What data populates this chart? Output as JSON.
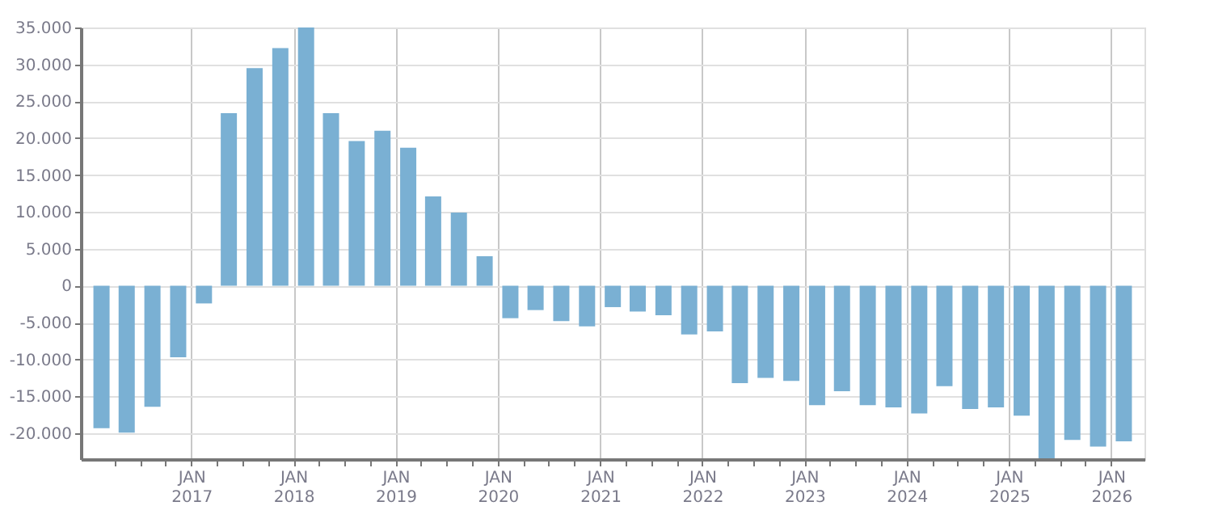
{
  "chart_data": {
    "type": "bar",
    "x": [
      "2016-02-15",
      "2016-05-15",
      "2016-08-15",
      "2016-11-15",
      "2017-02-15",
      "2017-05-15",
      "2017-08-15",
      "2017-11-15",
      "2018-02-15",
      "2018-05-15",
      "2018-08-15",
      "2018-11-15",
      "2019-02-15",
      "2019-05-15",
      "2019-08-15",
      "2019-11-15",
      "2020-02-15",
      "2020-05-15",
      "2020-08-15",
      "2020-11-15",
      "2021-02-15",
      "2021-05-15",
      "2021-08-15",
      "2021-11-15",
      "2022-02-15",
      "2022-05-15",
      "2022-08-15",
      "2022-11-15",
      "2023-02-15",
      "2023-05-15",
      "2023-08-15",
      "2023-11-15",
      "2024-02-15",
      "2024-05-15",
      "2024-08-15",
      "2024-11-15",
      "2025-02-15",
      "2025-05-15",
      "2025-08-15",
      "2025-11-15",
      "2026-02-15"
    ],
    "values": [
      -19300,
      -19900,
      -16400,
      -9700,
      -2400,
      23400,
      29500,
      32200,
      35000,
      23400,
      19600,
      21000,
      18700,
      12100,
      9900,
      4000,
      -4400,
      -3300,
      -4800,
      -5500,
      -2900,
      -3500,
      -4000,
      -6600,
      -6200,
      -13200,
      -12500,
      -12900,
      -16200,
      -14300,
      -16200,
      -16500,
      -17300,
      -13600,
      -16700,
      -16500,
      -17600,
      -23400,
      -20900,
      -21800,
      -21100
    ],
    "color": "#7ab0d3",
    "xlim": [
      "2016-01-01",
      "2026-04-01"
    ],
    "xticks": [
      {
        "value": "2016-04-01",
        "label": null
      },
      {
        "value": "2016-07-01",
        "label": null
      },
      {
        "value": "2016-10-01",
        "label": null
      },
      {
        "value": "2017-01-01",
        "label": "JAN\n2017"
      },
      {
        "value": "2017-04-01",
        "label": null
      },
      {
        "value": "2017-07-01",
        "label": null
      },
      {
        "value": "2017-10-01",
        "label": null
      },
      {
        "value": "2018-01-01",
        "label": "JAN\n2018"
      },
      {
        "value": "2018-04-01",
        "label": null
      },
      {
        "value": "2018-07-01",
        "label": null
      },
      {
        "value": "2018-10-01",
        "label": null
      },
      {
        "value": "2019-01-01",
        "label": "JAN\n2019"
      },
      {
        "value": "2019-04-01",
        "label": null
      },
      {
        "value": "2019-07-01",
        "label": null
      },
      {
        "value": "2019-10-01",
        "label": null
      },
      {
        "value": "2020-01-01",
        "label": "JAN\n2020"
      },
      {
        "value": "2020-04-01",
        "label": null
      },
      {
        "value": "2020-07-01",
        "label": null
      },
      {
        "value": "2020-10-01",
        "label": null
      },
      {
        "value": "2021-01-01",
        "label": "JAN\n2021"
      },
      {
        "value": "2021-04-01",
        "label": null
      },
      {
        "value": "2021-07-01",
        "label": null
      },
      {
        "value": "2021-10-01",
        "label": null
      },
      {
        "value": "2022-01-01",
        "label": "JAN\n2022"
      },
      {
        "value": "2022-04-01",
        "label": null
      },
      {
        "value": "2022-07-01",
        "label": null
      },
      {
        "value": "2022-10-01",
        "label": null
      },
      {
        "value": "2023-01-01",
        "label": "JAN\n2023"
      },
      {
        "value": "2023-04-01",
        "label": null
      },
      {
        "value": "2023-07-01",
        "label": null
      },
      {
        "value": "2023-10-01",
        "label": null
      },
      {
        "value": "2024-01-01",
        "label": "JAN\n2024"
      },
      {
        "value": "2024-04-01",
        "label": null
      },
      {
        "value": "2024-07-01",
        "label": null
      },
      {
        "value": "2024-10-01",
        "label": null
      },
      {
        "value": "2025-01-01",
        "label": "JAN\n2025"
      },
      {
        "value": "2025-04-01",
        "label": null
      },
      {
        "value": "2025-07-01",
        "label": null
      },
      {
        "value": "2025-10-01",
        "label": null
      },
      {
        "value": "2026-01-01",
        "label": "JAN\n2026"
      }
    ],
    "ylim": [
      -23500,
      35000
    ],
    "yticks": [
      {
        "value": -20000,
        "label": "-20.000"
      },
      {
        "value": -15000,
        "label": "-15.000"
      },
      {
        "value": -10000,
        "label": "-10.000"
      },
      {
        "value": -5000,
        "label": "-5.000"
      },
      0,
      {
        "value": 5000,
        "label": "5.000"
      },
      {
        "value": 10000,
        "label": "10.000"
      },
      {
        "value": 15000,
        "label": "15.000"
      },
      {
        "value": 20000,
        "label": "20.000"
      },
      {
        "value": 25000,
        "label": "25.000"
      },
      {
        "value": 30000,
        "label": "30.000"
      },
      {
        "value": 35000,
        "label": "35.000"
      }
    ],
    "grid": true
  }
}
